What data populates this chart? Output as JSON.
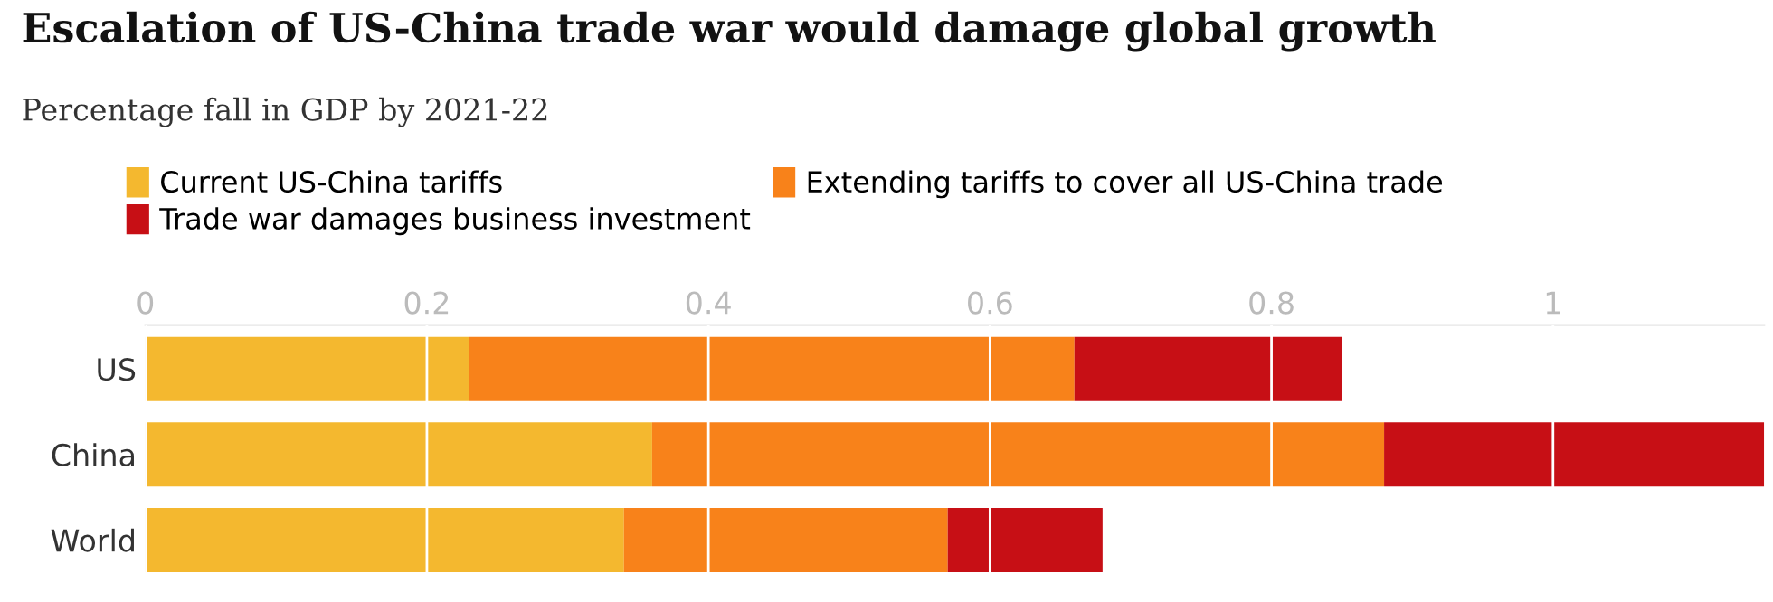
{
  "chart_data": {
    "type": "bar",
    "orientation": "horizontal",
    "stacked": true,
    "title": "Escalation of US-China trade war would damage global growth",
    "subtitle": "Percentage fall in GDP by 2021-22",
    "categories": [
      "US",
      "China",
      "World"
    ],
    "series": [
      {
        "name": "Current US-China tariffs",
        "color": "#f4b82f",
        "values": [
          0.23,
          0.36,
          0.34
        ]
      },
      {
        "name": "Extending tariffs to cover all US-China trade",
        "color": "#f8821a",
        "values": [
          0.43,
          0.52,
          0.23
        ]
      },
      {
        "name": "Trade war damages business investment",
        "color": "#c70f15",
        "values": [
          0.19,
          0.27,
          0.11
        ]
      }
    ],
    "xlim": [
      0,
      1.15
    ],
    "xticks": [
      0,
      0.2,
      0.4,
      0.6,
      0.8,
      1
    ],
    "grid": "x",
    "legend": "top left"
  }
}
